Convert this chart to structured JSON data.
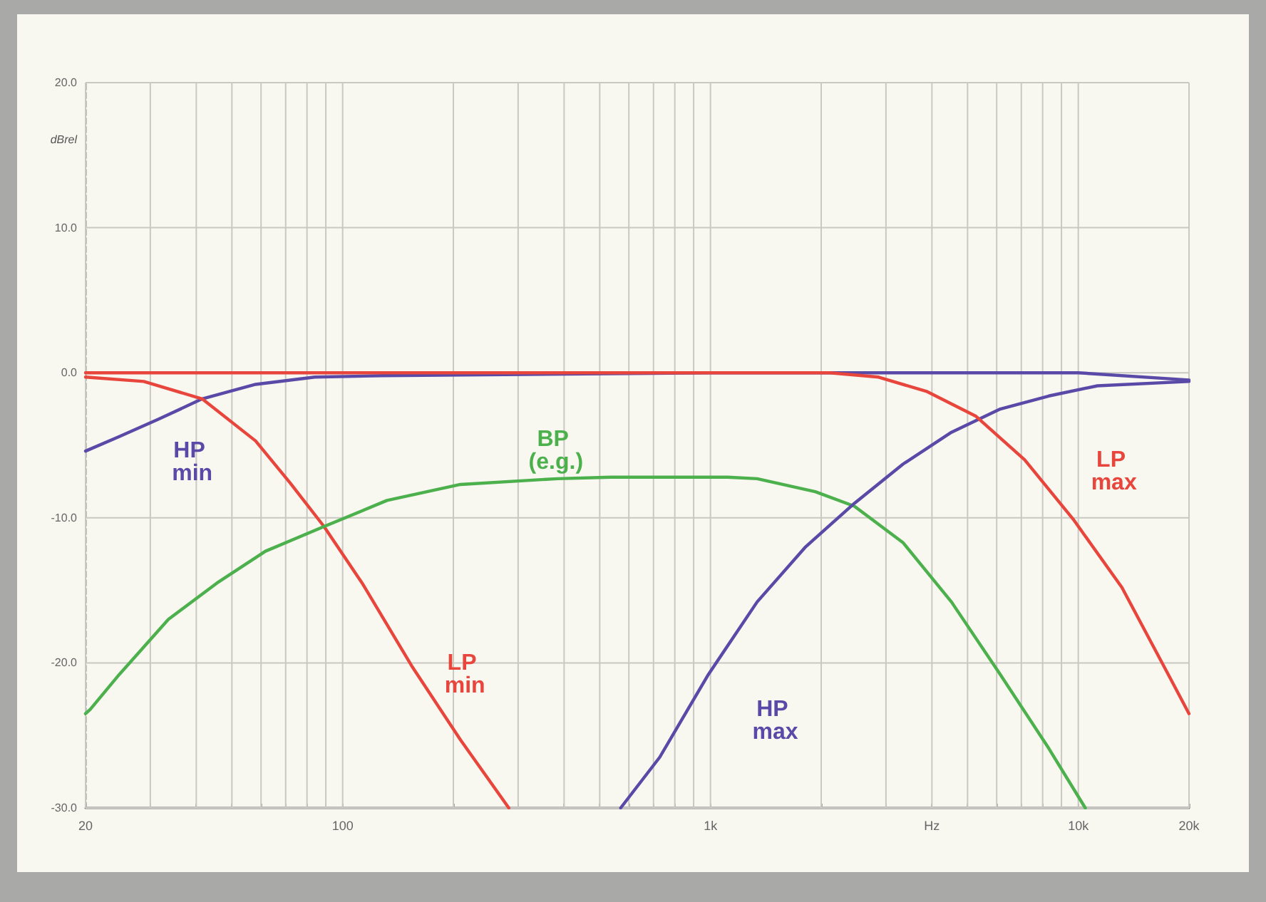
{
  "chart_data": {
    "type": "line",
    "ylabel": "dBrel",
    "log": "x",
    "grid": true,
    "line_style": "solid",
    "marker": "none",
    "xlim": [
      20,
      20000
    ],
    "xticks": [
      20,
      100,
      {
        "value": 1000,
        "label": "1k"
      },
      {
        "value": 4000,
        "label": "Hz"
      },
      {
        "value": 10000,
        "label": "10k"
      },
      {
        "value": 20000,
        "label": "20k"
      }
    ],
    "ylim": [
      -30,
      20
    ],
    "yticks": [
      {
        "value": -30,
        "label": "-30.0"
      },
      {
        "value": -20,
        "label": "-20.0"
      },
      {
        "value": -10,
        "label": "-10.0"
      },
      {
        "value": 0,
        "label": "0.0"
      },
      {
        "value": 10,
        "label": "10.0"
      },
      {
        "value": 20,
        "label": "20.0"
      }
    ],
    "series": [
      {
        "name": "HP min",
        "color": "#5a4aa8",
        "x": [
          20,
          24.7,
          31.6,
          41.5,
          58,
          84,
          128,
          1000,
          10000,
          20000
        ],
        "values": [
          -5.4,
          -4.4,
          -3.2,
          -1.8,
          -0.8,
          -0.3,
          -0.2,
          0,
          0,
          -0.5
        ]
      },
      {
        "name": "LP min",
        "color": "#e8463c",
        "x": [
          20,
          28.8,
          41.5,
          58,
          72,
          89,
          113,
          154,
          209,
          283
        ],
        "values": [
          -0.3,
          -0.6,
          -1.8,
          -4.7,
          -7.6,
          -10.6,
          -14.5,
          -20.2,
          -25.3,
          -30
        ]
      },
      {
        "name": "BP (e.g.)",
        "color": "#4cb04c",
        "x": [
          20,
          20.6,
          24.7,
          33.6,
          45.5,
          61.7,
          89,
          132,
          209,
          384,
          536,
          1114,
          1339,
          1928,
          2462,
          3336,
          4521,
          6137,
          8317,
          10448
        ],
        "values": [
          -23.5,
          -23.2,
          -20.8,
          -17.0,
          -14.5,
          -12.3,
          -10.6,
          -8.8,
          -7.7,
          -7.3,
          -7.2,
          -7.2,
          -7.3,
          -8.2,
          -9.2,
          -11.7,
          -15.8,
          -20.8,
          -25.9,
          -30
        ]
      },
      {
        "name": "HP max",
        "color": "#5a4aa8",
        "x": [
          570,
          728,
          987,
          1339,
          1814,
          2462,
          3336,
          4521,
          6137,
          8317,
          11272,
          20000
        ],
        "values": [
          -30,
          -26.5,
          -20.8,
          -15.8,
          -12.0,
          -9.0,
          -6.3,
          -4.1,
          -2.5,
          -1.6,
          -0.9,
          -0.6
        ]
      },
      {
        "name": "LP max",
        "color": "#e8463c",
        "x": [
          20,
          1000,
          2112,
          2864,
          3885,
          5272,
          7149,
          9689,
          13140,
          17820,
          20000
        ],
        "values": [
          0,
          0,
          0,
          -0.3,
          -1.3,
          -3.0,
          -6.0,
          -10.1,
          -14.8,
          -21.1,
          -23.5
        ]
      }
    ]
  }
}
